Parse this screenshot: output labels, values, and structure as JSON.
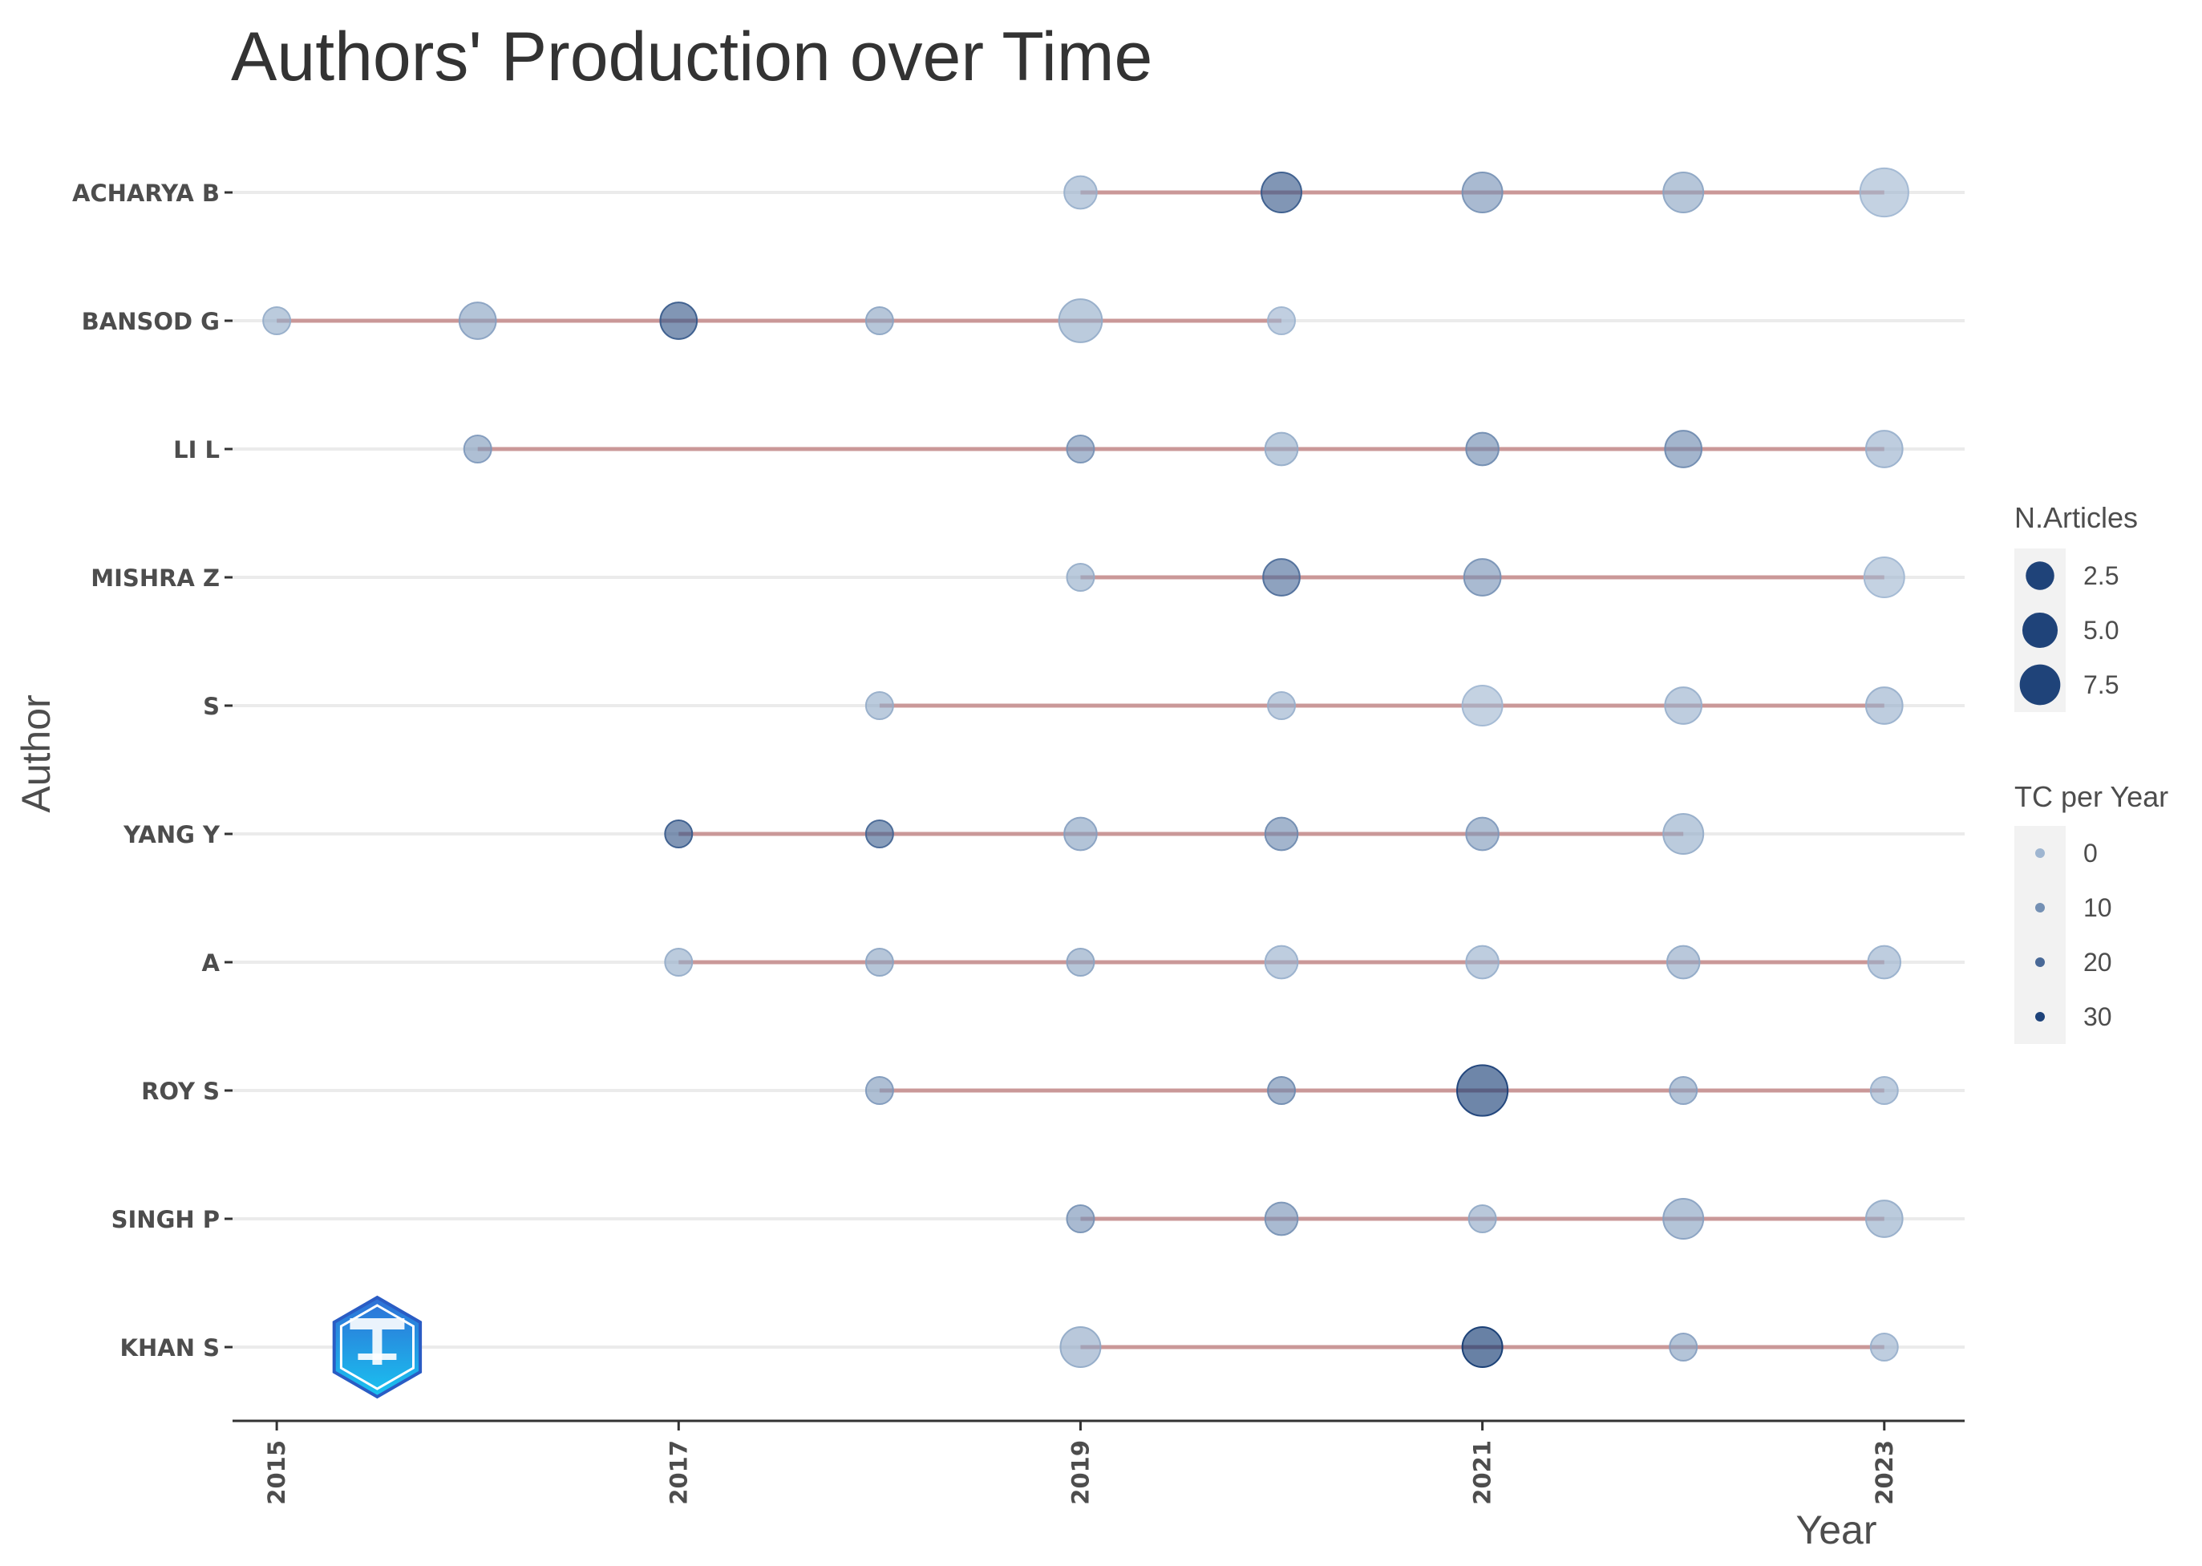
{
  "chart_data": {
    "type": "scatter",
    "title": "Authors' Production over Time",
    "xlabel": "Year",
    "ylabel": "Author",
    "xlim": [
      2014.78,
      2023.4
    ],
    "x_ticks": [
      2015,
      2017,
      2019,
      2021,
      2023
    ],
    "x_tick_labels": [
      "2015",
      "2017",
      "2019",
      "2021",
      "2023"
    ],
    "grid": true,
    "legend_position": "right",
    "colors": {
      "point_low": "#9fb6d1",
      "point_high": "#08306b",
      "segment": "#c48a8a",
      "grid": "#ebebeb",
      "axis": "#333333",
      "legend_key_bg": "#f2f2f2"
    },
    "authors": [
      {
        "name": "ACHARYA B",
        "span": [
          2019,
          2023
        ],
        "points": [
          {
            "year": 2019,
            "articles": 2,
            "tc": 2
          },
          {
            "year": 2020,
            "articles": 4,
            "tc": 25
          },
          {
            "year": 2021,
            "articles": 4,
            "tc": 10
          },
          {
            "year": 2022,
            "articles": 4,
            "tc": 5
          },
          {
            "year": 2023,
            "articles": 7,
            "tc": 0
          }
        ]
      },
      {
        "name": "BANSOD G",
        "span": [
          2015,
          2020
        ],
        "points": [
          {
            "year": 2015,
            "articles": 1,
            "tc": 3
          },
          {
            "year": 2016,
            "articles": 3,
            "tc": 6
          },
          {
            "year": 2017,
            "articles": 3,
            "tc": 25
          },
          {
            "year": 2018,
            "articles": 1,
            "tc": 5
          },
          {
            "year": 2019,
            "articles": 5,
            "tc": 3
          },
          {
            "year": 2020,
            "articles": 1,
            "tc": 1
          }
        ]
      },
      {
        "name": "LI L",
        "span": [
          2016,
          2023
        ],
        "points": [
          {
            "year": 2016,
            "articles": 1,
            "tc": 8
          },
          {
            "year": 2019,
            "articles": 1,
            "tc": 10
          },
          {
            "year": 2020,
            "articles": 2,
            "tc": 3
          },
          {
            "year": 2021,
            "articles": 2,
            "tc": 12
          },
          {
            "year": 2022,
            "articles": 3,
            "tc": 12
          },
          {
            "year": 2023,
            "articles": 3,
            "tc": 2
          }
        ]
      },
      {
        "name": "MISHRA Z",
        "span": [
          2019,
          2023
        ],
        "points": [
          {
            "year": 2019,
            "articles": 1,
            "tc": 3
          },
          {
            "year": 2020,
            "articles": 3,
            "tc": 20
          },
          {
            "year": 2021,
            "articles": 3,
            "tc": 10
          },
          {
            "year": 2023,
            "articles": 4,
            "tc": 0
          }
        ]
      },
      {
        "name": "S",
        "span": [
          2018,
          2023
        ],
        "points": [
          {
            "year": 2018,
            "articles": 1,
            "tc": 3
          },
          {
            "year": 2020,
            "articles": 1,
            "tc": 2
          },
          {
            "year": 2021,
            "articles": 4,
            "tc": 0
          },
          {
            "year": 2022,
            "articles": 3,
            "tc": 2
          },
          {
            "year": 2023,
            "articles": 3,
            "tc": 2
          }
        ]
      },
      {
        "name": "YANG Y",
        "span": [
          2017,
          2022
        ],
        "points": [
          {
            "year": 2017,
            "articles": 1,
            "tc": 25
          },
          {
            "year": 2018,
            "articles": 1,
            "tc": 22
          },
          {
            "year": 2019,
            "articles": 2,
            "tc": 6
          },
          {
            "year": 2020,
            "articles": 2,
            "tc": 12
          },
          {
            "year": 2021,
            "articles": 2,
            "tc": 8
          },
          {
            "year": 2022,
            "articles": 4,
            "tc": 3
          }
        ]
      },
      {
        "name": "A",
        "span": [
          2017,
          2023
        ],
        "points": [
          {
            "year": 2017,
            "articles": 1,
            "tc": 3
          },
          {
            "year": 2018,
            "articles": 1,
            "tc": 5
          },
          {
            "year": 2019,
            "articles": 1,
            "tc": 5
          },
          {
            "year": 2020,
            "articles": 2,
            "tc": 2
          },
          {
            "year": 2021,
            "articles": 2,
            "tc": 2
          },
          {
            "year": 2022,
            "articles": 2,
            "tc": 4
          },
          {
            "year": 2023,
            "articles": 2,
            "tc": 2
          }
        ]
      },
      {
        "name": "ROY S",
        "span": [
          2018,
          2023
        ],
        "points": [
          {
            "year": 2018,
            "articles": 1,
            "tc": 8
          },
          {
            "year": 2020,
            "articles": 1,
            "tc": 12
          },
          {
            "year": 2021,
            "articles": 8,
            "tc": 32
          },
          {
            "year": 2022,
            "articles": 1,
            "tc": 6
          },
          {
            "year": 2023,
            "articles": 1,
            "tc": 2
          }
        ]
      },
      {
        "name": "SINGH P",
        "span": [
          2019,
          2023
        ],
        "points": [
          {
            "year": 2019,
            "articles": 1,
            "tc": 10
          },
          {
            "year": 2020,
            "articles": 2,
            "tc": 10
          },
          {
            "year": 2021,
            "articles": 1,
            "tc": 4
          },
          {
            "year": 2022,
            "articles": 4,
            "tc": 6
          },
          {
            "year": 2023,
            "articles": 3,
            "tc": 3
          }
        ]
      },
      {
        "name": "KHAN S",
        "span": [
          2019,
          2023
        ],
        "points": [
          {
            "year": 2019,
            "articles": 4,
            "tc": 4
          },
          {
            "year": 2021,
            "articles": 4,
            "tc": 34
          },
          {
            "year": 2022,
            "articles": 1,
            "tc": 6
          },
          {
            "year": 2023,
            "articles": 1,
            "tc": 2
          }
        ]
      }
    ],
    "legend_articles": {
      "title": "N.Articles",
      "entries": [
        {
          "label": "2.5",
          "value": 2.5
        },
        {
          "label": "5.0",
          "value": 5.0
        },
        {
          "label": "7.5",
          "value": 7.5
        }
      ]
    },
    "legend_tc": {
      "title": "TC per Year",
      "entries": [
        {
          "label": "0",
          "value": 0
        },
        {
          "label": "10",
          "value": 10
        },
        {
          "label": "20",
          "value": 20
        },
        {
          "label": "30",
          "value": 30
        }
      ]
    },
    "logo": {
      "icon": "hexagon-emblem-icon",
      "year": 2015.5,
      "author": "KHAN S"
    }
  }
}
